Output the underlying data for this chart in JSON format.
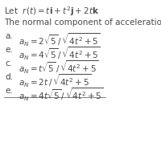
{
  "title_line1": "Let  $r(t) = t\\mathbf{i} + t^2\\mathbf{j} + 2t\\mathbf{k}$",
  "title_line2": "The normal component of acceleration is",
  "options": [
    {
      "label": "a.",
      "expr": "$a_N = 2\\sqrt{5}\\,/\\,\\sqrt{4t^2+5}$"
    },
    {
      "label": "e.",
      "expr": "$a_N = 4\\sqrt{5}\\,/\\,\\sqrt{4t^2+5}$"
    },
    {
      "label": "c.",
      "expr": "$a_N = t\\sqrt{5}\\,/\\,\\sqrt{4t^2+5}$"
    },
    {
      "label": "d.",
      "expr": "$a_N = 2t\\,/\\,\\sqrt{4t^2+5}$"
    },
    {
      "label": "e.",
      "expr": "$a_N = 4t\\sqrt{5}\\,/\\,\\sqrt{4t^2+5}$"
    }
  ],
  "bg_color": "#ffffff",
  "text_color": "#4a4a4a",
  "font_size_title": 7.5,
  "font_size_options": 7.5
}
